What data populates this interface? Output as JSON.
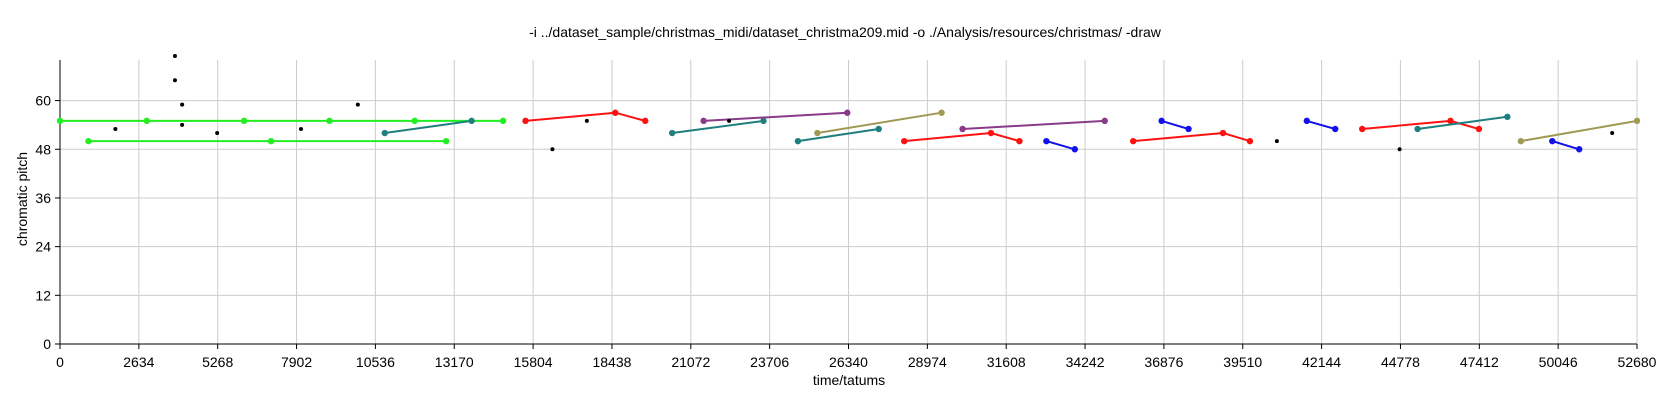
{
  "chart_data": {
    "type": "scatter",
    "title": "-i ../dataset_sample/christmas_midi/dataset_christma209.mid -o ./Analysis/resources/christmas/ -draw",
    "xlabel": "time/tatums",
    "ylabel": "chromatic pitch",
    "xlim": [
      0,
      52680
    ],
    "ylim": [
      0,
      70
    ],
    "x_ticks": [
      0,
      2634,
      5268,
      7902,
      10536,
      13170,
      15804,
      18438,
      21072,
      23706,
      26340,
      28974,
      31608,
      34242,
      36876,
      39510,
      42144,
      44778,
      47412,
      50046,
      52680
    ],
    "y_ticks": [
      0,
      12,
      24,
      36,
      48,
      60
    ],
    "grid": true,
    "legend": "none",
    "series": [
      {
        "color": "#22ee22",
        "points": [
          [
            0,
            55
          ],
          [
            2900,
            55
          ],
          [
            6150,
            55
          ],
          [
            9000,
            55
          ],
          [
            11850,
            55
          ],
          [
            14800,
            55
          ]
        ]
      },
      {
        "color": "#22ee22",
        "points": [
          [
            950,
            50
          ],
          [
            7050,
            50
          ],
          [
            12900,
            50
          ]
        ]
      },
      {
        "color": "#1f7f7f",
        "points": [
          [
            10850,
            52
          ],
          [
            13750,
            55
          ]
        ]
      },
      {
        "color": "#ff1111",
        "points": [
          [
            15550,
            55
          ],
          [
            18550,
            57
          ],
          [
            19550,
            55
          ]
        ]
      },
      {
        "color": "#1f7f7f",
        "points": [
          [
            20450,
            52
          ],
          [
            23500,
            55
          ]
        ]
      },
      {
        "color": "#8a3a8a",
        "points": [
          [
            21500,
            55
          ],
          [
            26300,
            57
          ]
        ]
      },
      {
        "color": "#1f7f7f",
        "points": [
          [
            24650,
            50
          ],
          [
            27350,
            53
          ]
        ]
      },
      {
        "color": "#a09a55",
        "points": [
          [
            25300,
            52
          ],
          [
            29450,
            57
          ]
        ]
      },
      {
        "color": "#ff1111",
        "points": [
          [
            28200,
            50
          ],
          [
            31100,
            52
          ],
          [
            32050,
            50
          ]
        ]
      },
      {
        "color": "#8a3a8a",
        "points": [
          [
            30150,
            53
          ],
          [
            34900,
            55
          ]
        ]
      },
      {
        "color": "#1111ee",
        "points": [
          [
            32950,
            50
          ],
          [
            33900,
            48
          ]
        ]
      },
      {
        "color": "#ff1111",
        "points": [
          [
            35850,
            50
          ],
          [
            38850,
            52
          ],
          [
            39750,
            50
          ]
        ]
      },
      {
        "color": "#1111ee",
        "points": [
          [
            36800,
            55
          ],
          [
            37700,
            53
          ]
        ]
      },
      {
        "color": "#1111ee",
        "points": [
          [
            41650,
            55
          ],
          [
            42600,
            53
          ]
        ]
      },
      {
        "color": "#ff1111",
        "points": [
          [
            43500,
            53
          ],
          [
            46450,
            55
          ],
          [
            47400,
            53
          ]
        ]
      },
      {
        "color": "#1f7f7f",
        "points": [
          [
            45350,
            53
          ],
          [
            48350,
            56
          ]
        ]
      },
      {
        "color": "#a09a55",
        "points": [
          [
            48800,
            50
          ],
          [
            52680,
            55
          ]
        ]
      },
      {
        "color": "#1111ee",
        "points": [
          [
            49850,
            50
          ],
          [
            50750,
            48
          ]
        ]
      }
    ],
    "isolated_points": [
      [
        1850,
        53
      ],
      [
        3840,
        71
      ],
      [
        3840,
        65
      ],
      [
        4080,
        59
      ],
      [
        4080,
        54
      ],
      [
        5250,
        52
      ],
      [
        8050,
        53
      ],
      [
        9950,
        59
      ],
      [
        16450,
        48
      ],
      [
        17600,
        55
      ],
      [
        22350,
        55
      ],
      [
        40650,
        50
      ],
      [
        44750,
        48
      ],
      [
        51850,
        52
      ]
    ],
    "isolated_color": "#000000"
  }
}
